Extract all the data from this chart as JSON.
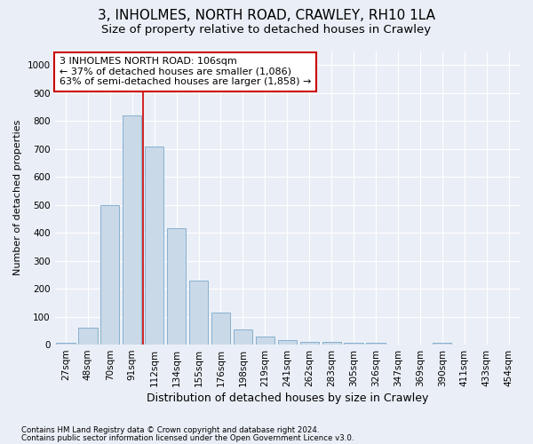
{
  "title": "3, INHOLMES, NORTH ROAD, CRAWLEY, RH10 1LA",
  "subtitle": "Size of property relative to detached houses in Crawley",
  "xlabel": "Distribution of detached houses by size in Crawley",
  "ylabel": "Number of detached properties",
  "footnote1": "Contains HM Land Registry data © Crown copyright and database right 2024.",
  "footnote2": "Contains public sector information licensed under the Open Government Licence v3.0.",
  "bar_labels": [
    "27sqm",
    "48sqm",
    "70sqm",
    "91sqm",
    "112sqm",
    "134sqm",
    "155sqm",
    "176sqm",
    "198sqm",
    "219sqm",
    "241sqm",
    "262sqm",
    "283sqm",
    "305sqm",
    "326sqm",
    "347sqm",
    "369sqm",
    "390sqm",
    "411sqm",
    "433sqm",
    "454sqm"
  ],
  "bar_values": [
    5,
    60,
    500,
    820,
    710,
    415,
    230,
    115,
    55,
    30,
    15,
    10,
    10,
    8,
    5,
    0,
    0,
    8,
    0,
    0,
    0
  ],
  "bar_color": "#c9d9e8",
  "bar_edgecolor": "#7aa8c8",
  "vline_color": "#cc0000",
  "annotation_line1": "3 INHOLMES NORTH ROAD: 106sqm",
  "annotation_line2": "← 37% of detached houses are smaller (1,086)",
  "annotation_line3": "63% of semi-detached houses are larger (1,858) →",
  "annotation_box_facecolor": "white",
  "annotation_box_edgecolor": "#cc0000",
  "ylim": [
    0,
    1050
  ],
  "yticks": [
    0,
    100,
    200,
    300,
    400,
    500,
    600,
    700,
    800,
    900,
    1000
  ],
  "bg_color": "#eaeff7",
  "plot_bg_color": "#eaeff7",
  "title_fontsize": 11,
  "subtitle_fontsize": 9.5,
  "xlabel_fontsize": 9,
  "ylabel_fontsize": 8,
  "tick_fontsize": 7.5,
  "annotation_fontsize": 8
}
